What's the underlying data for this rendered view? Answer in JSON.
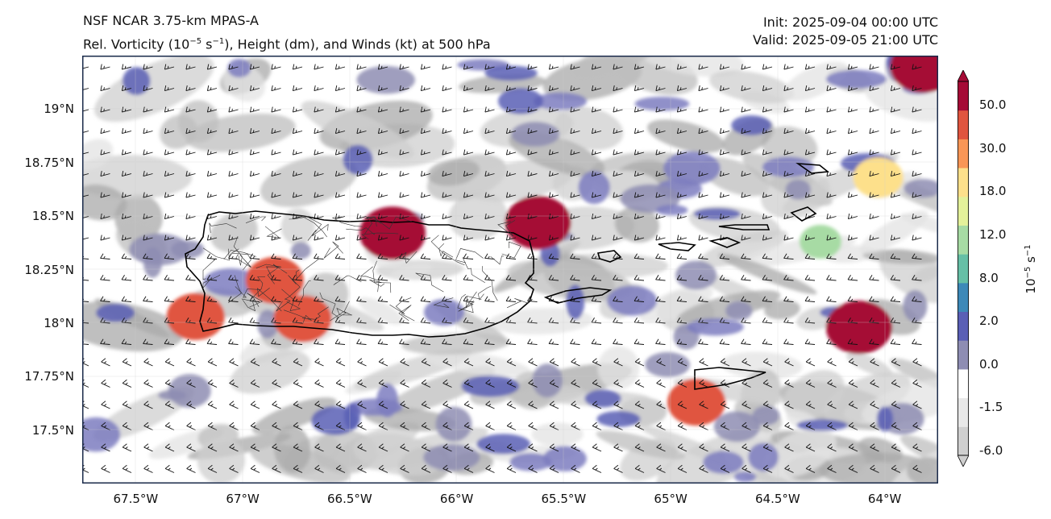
{
  "title": {
    "line1": "NSF NCAR 3.75-km MPAS-A",
    "line2_prefix": "Rel. Vorticity (10",
    "line2_exp": "−5",
    "line2_mid": " s",
    "line2_exp2": "−1",
    "line2_suffix": "), Height (dm), and Winds (kt) at 500 hPa",
    "init": "Init: 2025-09-04 00:00 UTC",
    "valid": "Valid: 2025-09-05 21:00 UTC"
  },
  "axes": {
    "x_ticks": [
      "67.5°W",
      "67°W",
      "66.5°W",
      "66°W",
      "65.5°W",
      "65°W",
      "64.5°W",
      "64°W"
    ],
    "x_values": [
      -67.5,
      -67.0,
      -66.5,
      -66.0,
      -65.5,
      -65.0,
      -64.5,
      -64.0
    ],
    "y_ticks": [
      "19°N",
      "18.75°N",
      "18.5°N",
      "18.25°N",
      "18°N",
      "17.75°N",
      "17.5°N"
    ],
    "y_values": [
      19.0,
      18.75,
      18.5,
      18.25,
      18.0,
      17.75,
      17.5
    ],
    "lon_range": [
      -67.75,
      -63.75
    ],
    "lat_range": [
      17.25,
      19.25
    ]
  },
  "colorbar": {
    "labels": [
      "50.0",
      "30.0",
      "18.0",
      "12.0",
      "8.0",
      "2.0",
      "0.0",
      "-1.5",
      "-6.0"
    ],
    "unit_base": "10",
    "unit_exp": "−5",
    "unit_mid": " s",
    "unit_exp2": "−1",
    "colors": [
      "#cfcfcf",
      "#e8e8e8",
      "#ffffff",
      "#8e8db3",
      "#5a5fb5",
      "#3d89b8",
      "#66bfa6",
      "#a7dba4",
      "#e4f19a",
      "#fde08b",
      "#f99656",
      "#e0553f",
      "#a50b36"
    ]
  },
  "features": {
    "vorticity_max": [
      {
        "lon": -66.3,
        "lat": 18.42,
        "level": 50
      },
      {
        "lon": -65.62,
        "lat": 18.47,
        "level": 50
      },
      {
        "lon": -64.12,
        "lat": 17.98,
        "level": 50
      },
      {
        "lon": -64.88,
        "lat": 17.63,
        "level": 30
      },
      {
        "lon": -67.22,
        "lat": 18.03,
        "level": 30
      },
      {
        "lon": -66.85,
        "lat": 18.2,
        "level": 30
      },
      {
        "lon": -66.72,
        "lat": 18.02,
        "level": 30
      },
      {
        "lon": -63.82,
        "lat": 19.2,
        "level": 50
      },
      {
        "lon": -64.03,
        "lat": 18.68,
        "level": 18
      },
      {
        "lon": -64.3,
        "lat": 18.38,
        "level": 12
      }
    ]
  }
}
